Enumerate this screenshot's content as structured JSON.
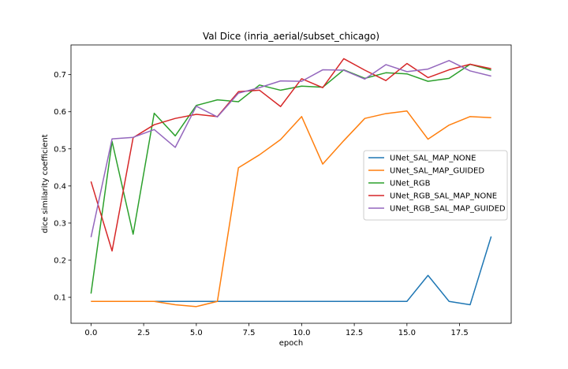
{
  "chart_data": {
    "type": "line",
    "title": "Val Dice (inria_aerial/subset_chicago)",
    "xlabel": "epoch",
    "ylabel": "dice similarity coefficient",
    "xlim": [
      -0.95,
      19.95
    ],
    "ylim": [
      0.03,
      0.78
    ],
    "xticks": [
      0.0,
      2.5,
      5.0,
      7.5,
      10.0,
      12.5,
      15.0,
      17.5
    ],
    "xtick_labels": [
      "0.0",
      "2.5",
      "5.0",
      "7.5",
      "10.0",
      "12.5",
      "15.0",
      "17.5"
    ],
    "yticks": [
      0.1,
      0.2,
      0.3,
      0.4,
      0.5,
      0.6,
      0.7
    ],
    "ytick_labels": [
      "0.1",
      "0.2",
      "0.3",
      "0.4",
      "0.5",
      "0.6",
      "0.7"
    ],
    "grid": false,
    "legend_position": "center-right",
    "x": [
      0,
      1,
      2,
      3,
      4,
      5,
      6,
      7,
      8,
      9,
      10,
      11,
      12,
      13,
      14,
      15,
      16,
      17,
      18,
      19
    ],
    "series": [
      {
        "name": "UNet_SAL_MAP_NONE",
        "color": "#1f77b4",
        "values": [
          0.089,
          0.089,
          0.089,
          0.089,
          0.089,
          0.089,
          0.089,
          0.089,
          0.089,
          0.089,
          0.089,
          0.089,
          0.089,
          0.089,
          0.089,
          0.089,
          0.159,
          0.089,
          0.08,
          0.264
        ]
      },
      {
        "name": "UNet_SAL_MAP_GUIDED",
        "color": "#ff7f0e",
        "values": [
          0.089,
          0.089,
          0.089,
          0.089,
          0.08,
          0.075,
          0.089,
          0.449,
          0.484,
          0.525,
          0.587,
          0.459,
          0.522,
          0.582,
          0.595,
          0.602,
          0.526,
          0.564,
          0.587,
          0.584
        ]
      },
      {
        "name": "UNet_RGB",
        "color": "#2ca02c",
        "values": [
          0.11,
          0.52,
          0.27,
          0.596,
          0.535,
          0.617,
          0.632,
          0.627,
          0.672,
          0.658,
          0.669,
          0.666,
          0.713,
          0.69,
          0.705,
          0.702,
          0.682,
          0.69,
          0.728,
          0.712
        ]
      },
      {
        "name": "UNet_RGB_SAL_MAP_NONE",
        "color": "#d62728",
        "values": [
          0.412,
          0.225,
          0.53,
          0.565,
          0.582,
          0.593,
          0.587,
          0.654,
          0.658,
          0.614,
          0.689,
          0.665,
          0.743,
          0.712,
          0.684,
          0.73,
          0.692,
          0.713,
          0.728,
          0.716
        ]
      },
      {
        "name": "UNet_RGB_SAL_MAP_GUIDED",
        "color": "#9467bd",
        "values": [
          0.262,
          0.527,
          0.531,
          0.552,
          0.504,
          0.615,
          0.586,
          0.65,
          0.665,
          0.683,
          0.682,
          0.713,
          0.712,
          0.688,
          0.727,
          0.708,
          0.715,
          0.738,
          0.71,
          0.696
        ]
      }
    ]
  }
}
